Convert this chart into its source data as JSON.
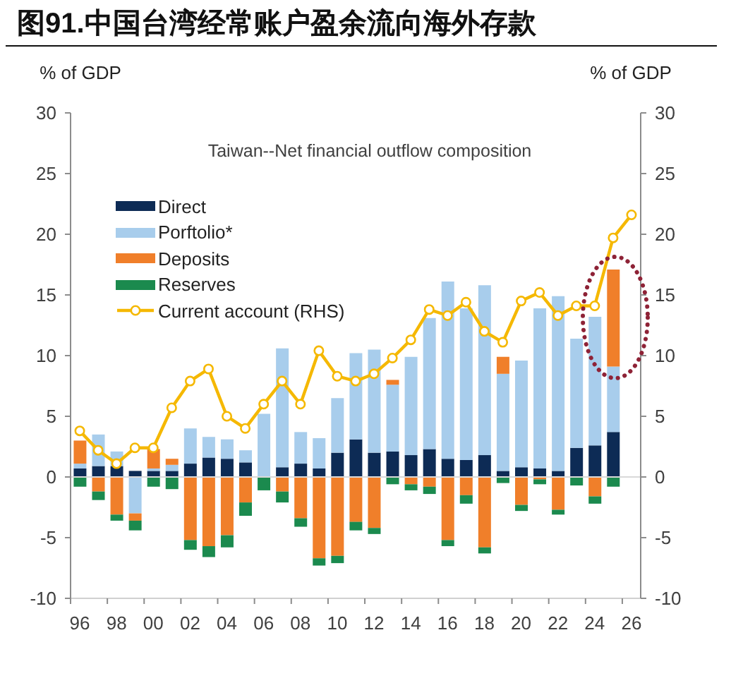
{
  "chart_data": {
    "type": "bar",
    "title": "图91.中国台湾经常账户盈余流向海外存款",
    "subtitle": "Taiwan--Net financial outflow composition",
    "ylabel": "% of GDP",
    "y2label": "% of GDP",
    "categories": [
      "96",
      null,
      "98",
      null,
      "00",
      null,
      "02",
      null,
      "04",
      null,
      "06",
      null,
      "08",
      null,
      "10",
      null,
      "12",
      null,
      "14",
      null,
      "16",
      null,
      "18",
      null,
      "20",
      null,
      "22",
      null,
      "24",
      null,
      "26"
    ],
    "series": [
      {
        "name": "Direct",
        "color": "#0d2b55",
        "values": [
          0.7,
          0.9,
          0.9,
          0.5,
          0.5,
          0.5,
          1.1,
          1.6,
          1.5,
          1.2,
          0,
          0.8,
          1.1,
          0.7,
          2.0,
          3.1,
          2.0,
          2.1,
          1.8,
          2.3,
          1.5,
          1.4,
          1.8,
          0.5,
          0.8,
          0.7,
          0.5,
          2.4,
          2.6,
          3.7,
          null
        ]
      },
      {
        "name": "Porftolio*",
        "color": "#a8cdec",
        "values": [
          0.4,
          2.6,
          1.2,
          -3.0,
          0.2,
          0.5,
          2.9,
          1.7,
          1.6,
          1.0,
          5.2,
          9.8,
          2.6,
          2.5,
          4.5,
          7.1,
          8.5,
          5.5,
          8.1,
          10.8,
          14.6,
          12.5,
          14.0,
          8.0,
          8.8,
          13.2,
          14.4,
          9.0,
          10.6,
          5.4,
          null
        ]
      },
      {
        "name": "Deposits",
        "color": "#f07f2a",
        "values": [
          1.9,
          -1.2,
          -3.1,
          -0.6,
          1.6,
          0.5,
          -5.2,
          -5.7,
          -4.8,
          -2.1,
          0,
          -1.2,
          -3.4,
          -6.7,
          -6.5,
          -3.7,
          -4.2,
          0.4,
          -0.6,
          -0.8,
          -5.2,
          -1.5,
          -5.8,
          1.4,
          -2.3,
          -0.2,
          -2.7,
          0,
          -1.6,
          8.0,
          null
        ]
      },
      {
        "name": "Reserves",
        "color": "#1b8a4e",
        "values": [
          -0.8,
          -0.7,
          -0.5,
          -0.8,
          -0.8,
          -1.0,
          -0.8,
          -0.9,
          -1.0,
          -1.1,
          -1.1,
          -0.9,
          -0.7,
          -0.6,
          -0.6,
          -0.7,
          -0.5,
          -0.6,
          -0.5,
          -0.6,
          -0.5,
          -0.7,
          -0.5,
          -0.5,
          -0.5,
          -0.4,
          -0.4,
          -0.7,
          -0.6,
          -0.8,
          null
        ]
      },
      {
        "name": "Current account (RHS)",
        "type": "line",
        "axis": "y2",
        "marker": "circle",
        "color": "#f5b800",
        "values": [
          3.8,
          2.2,
          1.1,
          2.4,
          2.4,
          5.7,
          7.9,
          8.9,
          5.0,
          4.0,
          6.0,
          7.9,
          6.0,
          10.4,
          8.3,
          7.9,
          8.5,
          9.8,
          11.3,
          13.8,
          13.3,
          14.4,
          12.0,
          11.1,
          14.5,
          15.2,
          13.3,
          14.1,
          14.1,
          19.7,
          21.6
        ]
      }
    ],
    "stacked": true,
    "ylim": [
      -10,
      30
    ],
    "yticks": [
      -10,
      -5,
      0,
      5,
      10,
      15,
      20,
      25,
      30
    ],
    "y2lim": [
      -10,
      30
    ],
    "y2ticks": [
      -10,
      -5,
      0,
      5,
      10,
      15,
      20,
      25,
      30
    ],
    "ref_lines": [
      {
        "axis": "y",
        "value": 0,
        "color": "#d9d9d9"
      }
    ],
    "legend": "top left"
  }
}
